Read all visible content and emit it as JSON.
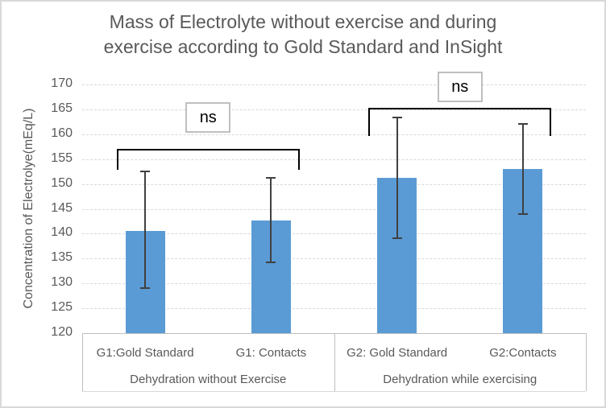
{
  "chart_data": {
    "type": "bar",
    "title": "Mass of Electrolyte without exercise and during exercise according to Gold Standard and InSight",
    "title_lines": [
      "Mass of Electrolyte without exercise and during",
      "exercise according to Gold Standard and InSight"
    ],
    "ylabel": "Concentration of Electrolye(mEq/L)",
    "xlabel": "",
    "ylim": [
      120,
      170
    ],
    "ytick_step": 5,
    "ytick_labels": [
      "120",
      "125",
      "130",
      "135",
      "140",
      "145",
      "150",
      "155",
      "160",
      "165",
      "170"
    ],
    "grid": true,
    "legend": false,
    "groups": [
      {
        "label": "Dehydration without Exercise",
        "categories": [
          "G1:Gold Standard",
          "G1: Contacts"
        ]
      },
      {
        "label": "Dehydration while exercising",
        "categories": [
          "G2: Gold Standard",
          "G2:Contacts"
        ]
      }
    ],
    "bars": [
      {
        "category": "G1:Gold Standard",
        "value": 140.6,
        "err_low": 129.0,
        "err_high": 152.6
      },
      {
        "category": "G1: Contacts",
        "value": 142.7,
        "err_low": 134.3,
        "err_high": 151.2
      },
      {
        "category": "G2: Gold Standard",
        "value": 151.2,
        "err_low": 139.1,
        "err_high": 163.3
      },
      {
        "category": "G2:Contacts",
        "value": 153.0,
        "err_low": 144.0,
        "err_high": 162.1
      }
    ],
    "annotations": [
      {
        "text": "ns",
        "bar_start": 0,
        "bar_end": 1,
        "bracket_y": 157.0,
        "leg_end_y": 152.8,
        "box_center_y": 163.3
      },
      {
        "text": "ns",
        "bar_start": 2,
        "bar_end": 3,
        "bracket_y": 165.3,
        "leg_end_y": 159.6,
        "box_center_y": 169.5
      }
    ],
    "colors": {
      "bar": "#5B9BD5",
      "error_bar": "#404040",
      "bracket": "#000000",
      "gridline": "#D9D9D9",
      "axis_line": "#BFBFBF",
      "text": "#595959",
      "annotation_text": "#000000",
      "annotation_box_border": "#BFBFBF",
      "background": "#FFFFFF"
    }
  }
}
